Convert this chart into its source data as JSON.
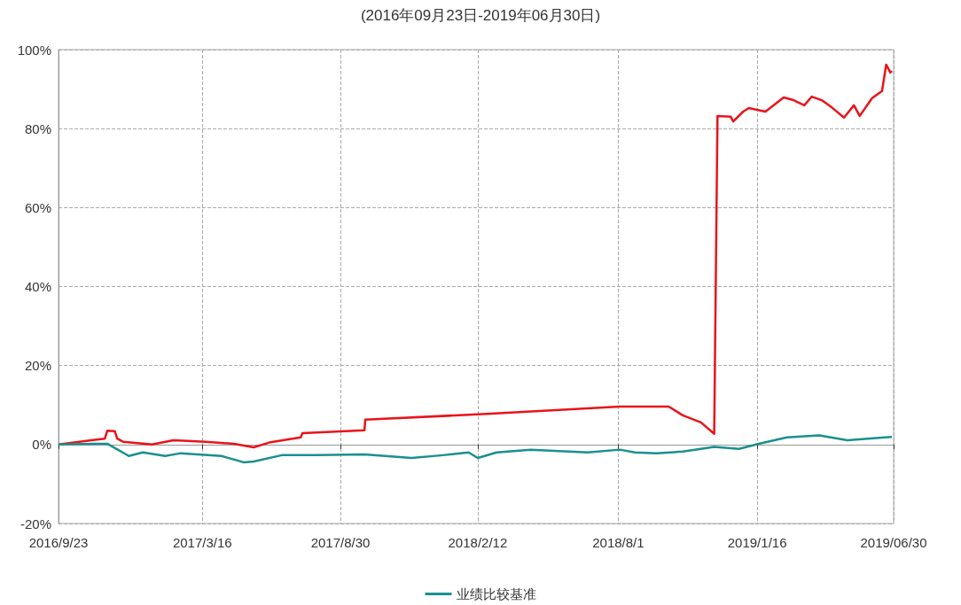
{
  "chart_data": {
    "type": "line",
    "title": "(2016年09月23日-2019年06月30日)",
    "xlim": [
      "2016-09-23",
      "2019-06-30"
    ],
    "xticks": [
      {
        "value": "2016-09-23",
        "label": "2016/9/23"
      },
      {
        "value": "2017-03-16",
        "label": "2017/3/16"
      },
      {
        "value": "2017-08-30",
        "label": "2017/8/30"
      },
      {
        "value": "2018-02-12",
        "label": "2018/2/12"
      },
      {
        "value": "2018-08-01",
        "label": "2018/8/1"
      },
      {
        "value": "2019-01-16",
        "label": "2019/1/16"
      },
      {
        "value": "2019-06-30",
        "label": "2019/06/30"
      }
    ],
    "ylim": [
      -20,
      100
    ],
    "yticks": [
      {
        "value": -20,
        "label": "-20%"
      },
      {
        "value": 0,
        "label": "0%"
      },
      {
        "value": 20,
        "label": "20%"
      },
      {
        "value": 40,
        "label": "40%"
      },
      {
        "value": 60,
        "label": "60%"
      },
      {
        "value": 80,
        "label": "80%"
      },
      {
        "value": 100,
        "label": "100%"
      }
    ],
    "grid": true,
    "legend": "bottom",
    "marker": "none",
    "line_style": "solid",
    "series": [
      {
        "color": "#e8141b",
        "x": [
          "2016-09-23",
          "2016-11-06",
          "2016-11-18",
          "2016-11-21",
          "2016-11-30",
          "2016-12-03",
          "2016-12-10",
          "2017-01-14",
          "2017-02-09",
          "2017-03-20",
          "2017-04-23",
          "2017-05-17",
          "2017-06-05",
          "2017-07-13",
          "2017-07-15",
          "2017-09-28",
          "2017-09-29",
          "2018-02-28",
          "2018-08-03",
          "2018-10-01",
          "2018-10-18",
          "2018-11-09",
          "2018-11-25",
          "2018-11-29",
          "2018-12-15",
          "2018-12-18",
          "2018-12-30",
          "2019-01-06",
          "2019-01-26",
          "2019-02-17",
          "2019-03-01",
          "2019-03-14",
          "2019-03-23",
          "2019-04-04",
          "2019-04-16",
          "2019-05-01",
          "2019-05-13",
          "2019-05-20",
          "2019-06-04",
          "2019-06-16",
          "2019-06-21",
          "2019-06-26",
          "2019-06-28"
        ],
        "values": [
          0,
          1.2,
          1.5,
          3.5,
          3.4,
          1.5,
          0.7,
          0,
          1.1,
          0.7,
          0.2,
          -0.7,
          0.5,
          1.8,
          2.9,
          3.6,
          6.3,
          7.8,
          9.6,
          9.6,
          7.4,
          5.6,
          2.7,
          83.2,
          83,
          81.8,
          84.3,
          85.2,
          84.3,
          87.9,
          87.2,
          85.9,
          88.1,
          87.2,
          85.4,
          82.8,
          85.9,
          83.2,
          87.7,
          89.5,
          96.2,
          94.2,
          94.6
        ]
      },
      {
        "name": "业绩比较基准",
        "color": "#1a8f8f",
        "x": [
          "2016-09-23",
          "2016-11-06",
          "2016-11-21",
          "2016-12-17",
          "2017-01-03",
          "2017-01-30",
          "2017-02-18",
          "2017-04-08",
          "2017-05-05",
          "2017-05-17",
          "2017-06-20",
          "2017-08-01",
          "2017-09-28",
          "2017-11-24",
          "2018-01-01",
          "2018-02-01",
          "2018-02-12",
          "2018-03-07",
          "2018-04-17",
          "2018-06-25",
          "2018-08-03",
          "2018-08-21",
          "2018-09-16",
          "2018-10-18",
          "2018-11-25",
          "2018-12-25",
          "2019-01-18",
          "2019-02-21",
          "2019-04-01",
          "2019-05-05",
          "2019-06-20",
          "2019-06-28"
        ],
        "values": [
          0,
          0.2,
          0.2,
          -2.9,
          -2,
          -2.9,
          -2.2,
          -2.9,
          -4.5,
          -4.3,
          -2.7,
          -2.7,
          -2.5,
          -3.4,
          -2.7,
          -2,
          -3.4,
          -2,
          -1.3,
          -2,
          -1.3,
          -2,
          -2.2,
          -1.8,
          -0.6,
          -1.1,
          0.2,
          1.8,
          2.3,
          1.1,
          1.8,
          1.9
        ]
      }
    ]
  }
}
